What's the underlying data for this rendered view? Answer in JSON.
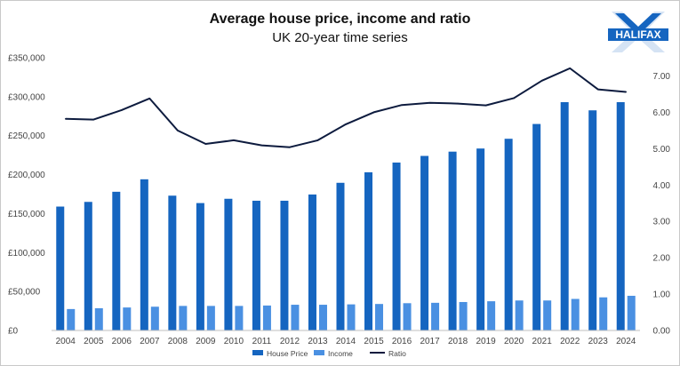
{
  "header": {
    "title": "Average house price, income and ratio",
    "subtitle": "UK 20-year time series",
    "logo_text": "HALIFAX"
  },
  "colors": {
    "house_price": "#1565C0",
    "income": "#4A90E2",
    "ratio": "#0D1B3E",
    "logo": "#1565C0"
  },
  "chart_data": {
    "type": "bar",
    "title": "Average house price, income and ratio",
    "subtitle": "UK 20-year time series",
    "categories": [
      "2004",
      "2005",
      "2006",
      "2007",
      "2008",
      "2009",
      "2010",
      "2011",
      "2012",
      "2013",
      "2014",
      "2015",
      "2016",
      "2017",
      "2018",
      "2019",
      "2020",
      "2021",
      "2022",
      "2023",
      "2024"
    ],
    "series": [
      {
        "name": "House Price",
        "type": "bar",
        "axis": "left",
        "values": [
          159000,
          165000,
          178000,
          194000,
          173000,
          163500,
          169000,
          166500,
          166500,
          174500,
          189500,
          203000,
          215500,
          224000,
          229500,
          233500,
          246000,
          265000,
          293000,
          282500,
          293000
        ]
      },
      {
        "name": "Income",
        "type": "bar",
        "axis": "left",
        "values": [
          27500,
          28500,
          29500,
          30500,
          31500,
          31500,
          31500,
          32000,
          33000,
          33000,
          33500,
          34000,
          35000,
          35500,
          36500,
          37500,
          38500,
          38500,
          40500,
          42500,
          44500
        ]
      },
      {
        "name": "Ratio",
        "type": "line",
        "axis": "right",
        "values": [
          5.82,
          5.8,
          6.06,
          6.38,
          5.5,
          5.13,
          5.23,
          5.09,
          5.04,
          5.23,
          5.67,
          6.0,
          6.2,
          6.26,
          6.24,
          6.19,
          6.39,
          6.87,
          7.21,
          6.63,
          6.56
        ]
      }
    ],
    "y_left": {
      "ylim": [
        0,
        350000
      ],
      "ticks": [
        0,
        50000,
        100000,
        150000,
        200000,
        250000,
        300000,
        350000
      ],
      "tick_labels": [
        "£0",
        "£50,000",
        "£100,000",
        "£150,000",
        "£200,000",
        "£250,000",
        "£300,000",
        "£350,000"
      ]
    },
    "y_right": {
      "ylim": [
        0,
        7.5
      ],
      "ticks": [
        0,
        1,
        2,
        3,
        4,
        5,
        6,
        7
      ],
      "tick_labels": [
        "0.00",
        "1.00",
        "2.00",
        "3.00",
        "4.00",
        "5.00",
        "6.00",
        "7.00"
      ]
    },
    "grid": false,
    "legend_position": "bottom-center",
    "legend": [
      "House Price",
      "Income",
      "Ratio"
    ]
  }
}
